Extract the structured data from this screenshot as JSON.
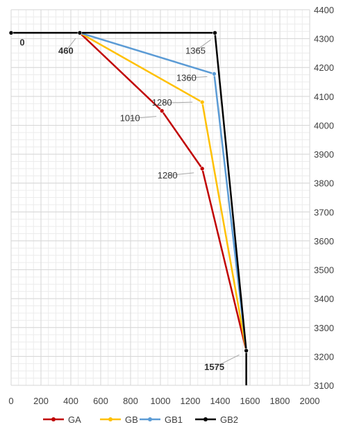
{
  "chart_data": {
    "type": "line",
    "title": "",
    "xlabel": "",
    "ylabel": "",
    "xlim": [
      0,
      2000
    ],
    "ylim": [
      3100,
      4400
    ],
    "x_ticks": [
      0,
      200,
      400,
      600,
      800,
      1000,
      1200,
      1400,
      1600,
      1800,
      2000
    ],
    "y_ticks": [
      3100,
      3200,
      3300,
      3400,
      3500,
      3600,
      3700,
      3800,
      3900,
      4000,
      4100,
      4200,
      4300,
      4400
    ],
    "y_axis_side": "right",
    "grid": true,
    "legend_position": "bottom",
    "series": [
      {
        "name": "GA",
        "color": "#c00000",
        "points": [
          [
            460,
            4320
          ],
          [
            1010,
            4050
          ],
          [
            1280,
            3850
          ],
          [
            1575,
            3220
          ]
        ]
      },
      {
        "name": "GB",
        "color": "#ffc000",
        "points": [
          [
            460,
            4320
          ],
          [
            1280,
            4080
          ],
          [
            1575,
            3220
          ]
        ]
      },
      {
        "name": "GB1",
        "color": "#5b9bd5",
        "points": [
          [
            460,
            4320
          ],
          [
            1360,
            4178
          ],
          [
            1575,
            3220
          ]
        ]
      },
      {
        "name": "GB2",
        "color": "#000000",
        "points": [
          [
            0,
            4320
          ],
          [
            460,
            4320
          ],
          [
            1365,
            4320
          ],
          [
            1575,
            3220
          ],
          [
            1575,
            3100
          ]
        ]
      }
    ],
    "annotations": [
      {
        "text": "0",
        "x": 0,
        "y": 4320,
        "bold": true,
        "color": "#333333"
      },
      {
        "text": "460",
        "x": 460,
        "y": 4320,
        "bold": true,
        "color": "#333333"
      },
      {
        "text": "1365",
        "x": 1365,
        "y": 4320,
        "bold": false,
        "color": "#333333"
      },
      {
        "text": "1360",
        "x": 1360,
        "y": 4178,
        "bold": false,
        "color": "#333333"
      },
      {
        "text": "1280",
        "x": 1280,
        "y": 4080,
        "bold": false,
        "color": "#333333"
      },
      {
        "text": "1010",
        "x": 1010,
        "y": 4050,
        "bold": false,
        "color": "#333333"
      },
      {
        "text": "1280",
        "x": 1280,
        "y": 3850,
        "bold": false,
        "color": "#333333"
      },
      {
        "text": "1575",
        "x": 1575,
        "y": 3220,
        "bold": true,
        "color": "#333333"
      }
    ]
  }
}
